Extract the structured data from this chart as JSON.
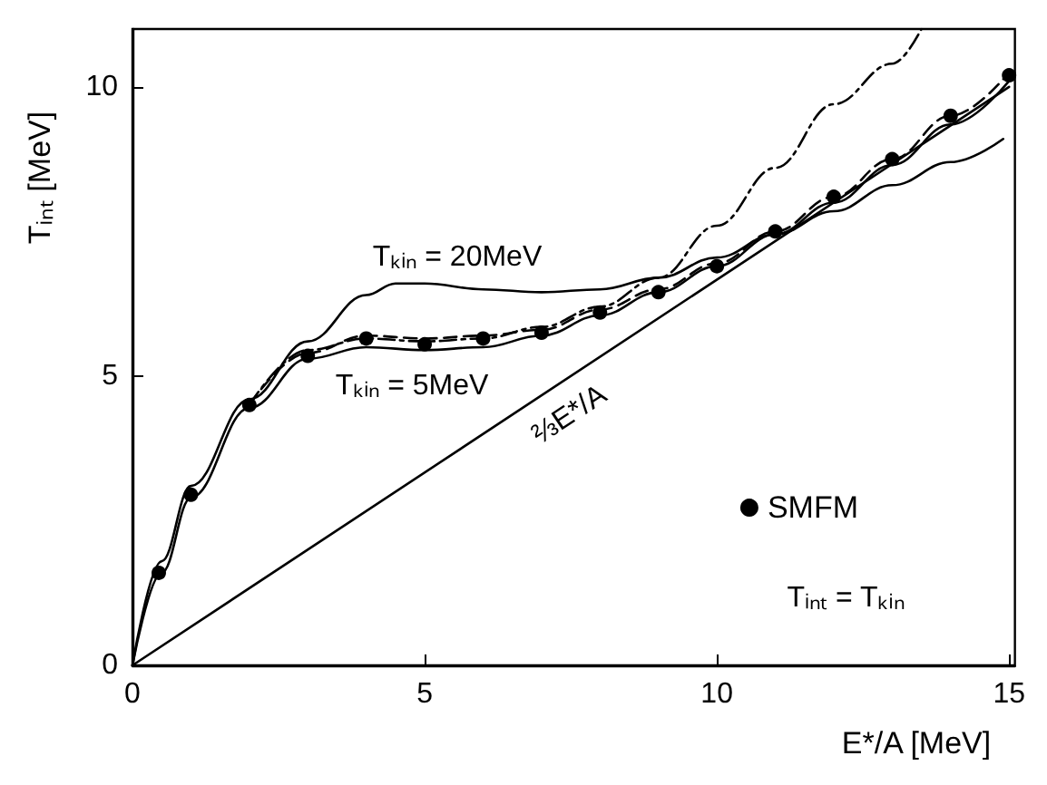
{
  "chart_data": {
    "type": "line",
    "xlabel": "E*/A [MeV]",
    "ylabel": "Tᵢₙₜ [MeV]",
    "xlim": [
      0,
      15.1
    ],
    "ylim": [
      0,
      11
    ],
    "xticks": [
      0,
      5,
      10,
      15
    ],
    "yticks": [
      0,
      5,
      10
    ],
    "grid": false,
    "legend": "right",
    "series": [
      {
        "type": "scatter",
        "name": "SMFM",
        "color": "#000000",
        "marker": "circle",
        "x": [
          0.45,
          1,
          2,
          3,
          4,
          5,
          6,
          7,
          8,
          9,
          10,
          11,
          12,
          13,
          14,
          15
        ],
        "values": [
          1.6,
          2.95,
          4.5,
          5.35,
          5.65,
          5.55,
          5.65,
          5.75,
          6.1,
          6.45,
          6.9,
          7.5,
          8.1,
          8.75,
          9.5,
          10.2
        ]
      },
      {
        "color": "#000000",
        "line_style": "solid",
        "marker": "none",
        "x": [
          0,
          0.5,
          1,
          2,
          3,
          4,
          4.5,
          5,
          6,
          7,
          8,
          9,
          10,
          11,
          12,
          13,
          14,
          14.9
        ],
        "values": [
          0,
          1.8,
          3.1,
          4.6,
          5.6,
          6.4,
          6.6,
          6.6,
          6.5,
          6.45,
          6.5,
          6.7,
          7.05,
          7.45,
          7.85,
          8.3,
          8.7,
          9.1
        ]
      },
      {
        "color": "#000000",
        "line_style": "solid",
        "marker": "none",
        "x": [
          0,
          0.5,
          1,
          2,
          3,
          4,
          5,
          6,
          7,
          8,
          9,
          10,
          11,
          12,
          13,
          14,
          15
        ],
        "values": [
          0,
          1.6,
          2.9,
          4.45,
          5.3,
          5.5,
          5.45,
          5.5,
          5.7,
          6.05,
          6.45,
          6.9,
          7.45,
          8.0,
          8.65,
          9.35,
          10.1
        ]
      },
      {
        "color": "#000000",
        "line_style": "dashed",
        "marker": "none",
        "x": [
          2,
          3,
          4,
          5,
          6,
          7,
          8,
          9,
          10,
          11,
          12,
          13,
          14,
          15
        ],
        "values": [
          4.5,
          5.4,
          5.7,
          5.65,
          5.7,
          5.8,
          6.15,
          6.5,
          6.95,
          7.5,
          8.1,
          8.75,
          9.5,
          10.25
        ]
      },
      {
        "color": "#000000",
        "line_style": "dashdot",
        "marker": "none",
        "x": [
          2,
          3,
          4,
          5,
          6,
          7,
          8,
          9,
          10,
          11,
          12,
          13,
          13.5
        ],
        "values": [
          4.5,
          5.45,
          5.65,
          5.6,
          5.65,
          5.85,
          6.2,
          6.7,
          7.6,
          8.6,
          9.7,
          10.4,
          11
        ]
      },
      {
        "color": "#000000",
        "line_style": "solid",
        "marker": "none",
        "x": [
          0,
          15
        ],
        "values": [
          0,
          10
        ]
      }
    ],
    "annotations": [
      "Tₖᵢₙ = 20MeV",
      "Tₖᵢₙ = 5MeV",
      "⅔E*/A",
      "Tᵢₙₜ = Tₖᵢₙ"
    ]
  }
}
